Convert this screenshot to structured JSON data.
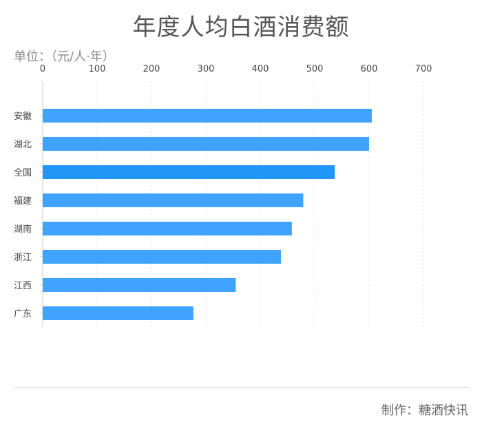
{
  "title": "年度人均白酒消费额",
  "unit_label": "单位：（元/人·年）",
  "credit": "制作：糖酒快讯",
  "colors": {
    "bar": "#3fa3ff",
    "bar_highlight": "#2196f7",
    "axis": "#cccccc",
    "grid": "#e6e6e6",
    "tick_text": "#444444"
  },
  "chart_data": {
    "type": "bar",
    "orientation": "horizontal",
    "categories": [
      "安徽",
      "湖北",
      "全国",
      "福建",
      "湖南",
      "浙江",
      "江西",
      "广东"
    ],
    "values": [
      605,
      600,
      537,
      479,
      458,
      438,
      355,
      277
    ],
    "highlight": "全国",
    "xlim": [
      0,
      700
    ],
    "xticks": [
      0,
      100,
      200,
      300,
      400,
      500,
      600,
      700
    ],
    "x_axis_position": "top",
    "grid": true
  }
}
